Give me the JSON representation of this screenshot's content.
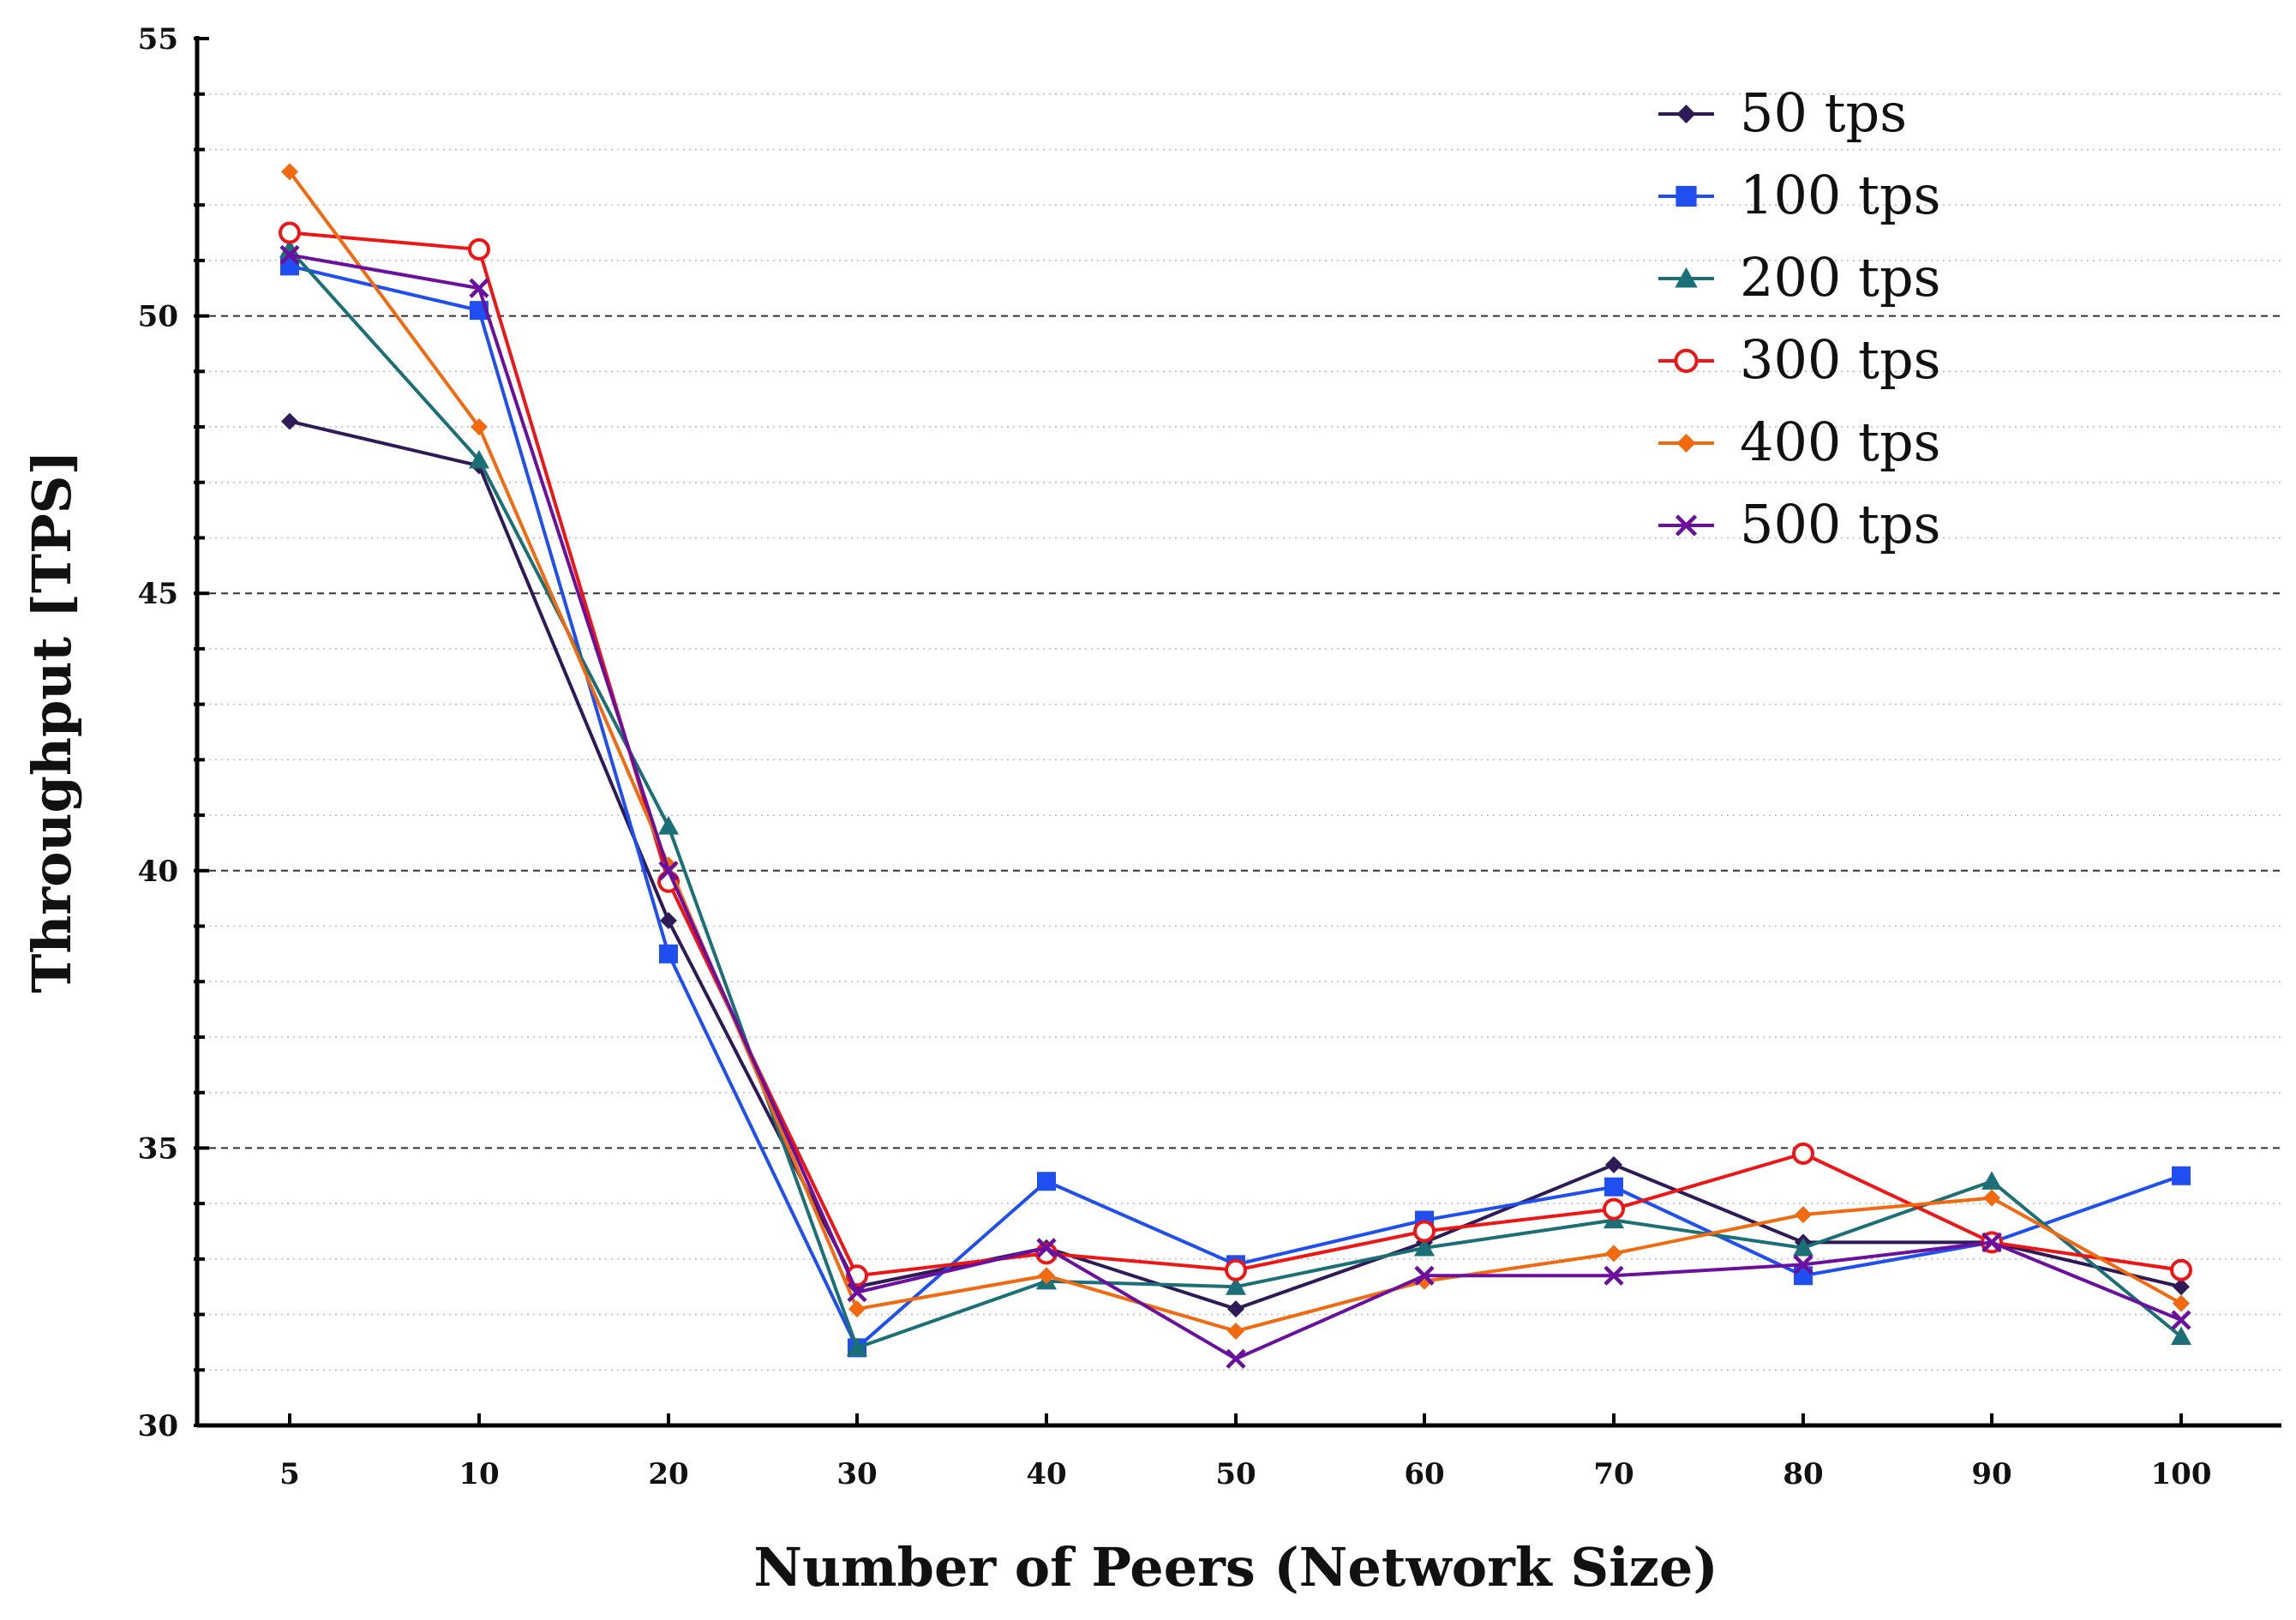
{
  "chart_data": {
    "type": "line",
    "title": "",
    "xlabel": "Number of Peers (Network Size)",
    "ylabel": "Throughput [TPS]",
    "categories": [
      "5",
      "10",
      "20",
      "30",
      "40",
      "50",
      "60",
      "70",
      "80",
      "90",
      "100"
    ],
    "ylim": [
      30,
      55
    ],
    "y_major_ticks": [
      "30",
      "35",
      "40",
      "45",
      "50",
      "55"
    ],
    "grid": "horizontal dashed at major ticks, dotted at minor ticks",
    "legend_position": "top-right",
    "series": [
      {
        "name": "50 tps",
        "color": "#2d1a57",
        "marker": "diamond",
        "values": [
          48.1,
          47.3,
          39.1,
          32.5,
          33.2,
          32.1,
          33.3,
          34.7,
          33.3,
          33.3,
          32.5
        ]
      },
      {
        "name": "100 tps",
        "color": "#1f4ff0",
        "marker": "square",
        "values": [
          50.9,
          50.1,
          38.5,
          31.4,
          34.4,
          32.9,
          33.7,
          34.3,
          32.7,
          33.3,
          34.5
        ]
      },
      {
        "name": "200 tps",
        "color": "#1a7076",
        "marker": "triangle",
        "values": [
          51.2,
          47.4,
          40.8,
          31.4,
          32.6,
          32.5,
          33.2,
          33.7,
          33.2,
          34.4,
          31.6
        ]
      },
      {
        "name": "300 tps",
        "color": "#ee1515",
        "marker": "circle-open",
        "values": [
          51.5,
          51.2,
          39.8,
          32.7,
          33.1,
          32.8,
          33.5,
          33.9,
          34.9,
          33.3,
          32.8
        ]
      },
      {
        "name": "400 tps",
        "color": "#f26a10",
        "marker": "diamond",
        "values": [
          52.6,
          48.0,
          40.1,
          32.1,
          32.7,
          31.7,
          32.6,
          33.1,
          33.8,
          34.1,
          32.2
        ]
      },
      {
        "name": "500 tps",
        "color": "#6a0f9e",
        "marker": "x",
        "values": [
          51.1,
          50.5,
          40.0,
          32.4,
          33.2,
          31.2,
          32.7,
          32.7,
          32.9,
          33.3,
          31.9
        ]
      }
    ]
  }
}
